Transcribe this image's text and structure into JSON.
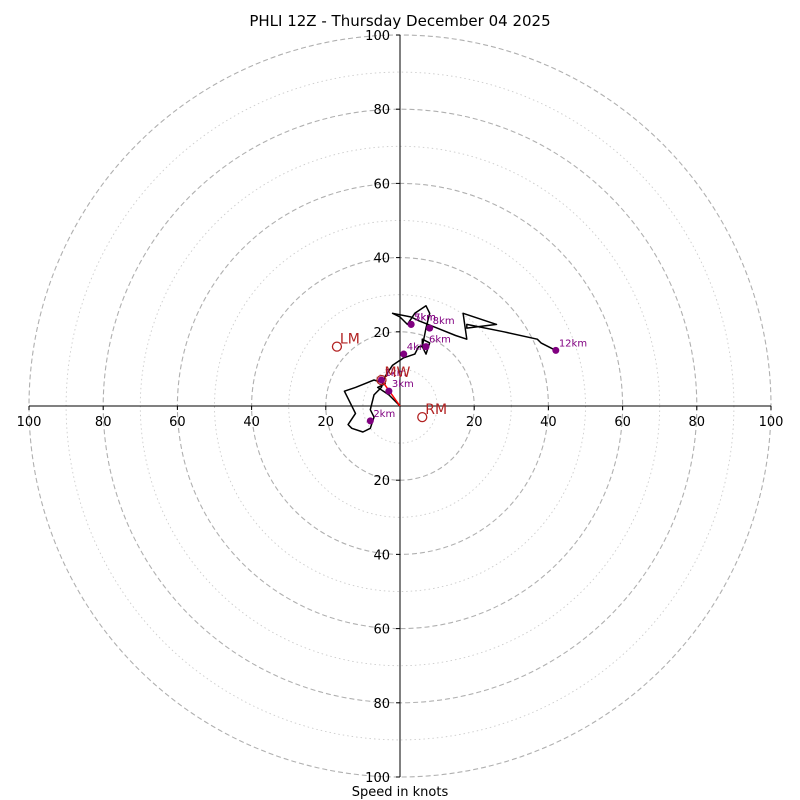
{
  "chart_data": {
    "type": "scatter",
    "title": "PHLI 12Z - Thursday December 04 2025",
    "xlabel": "Speed in knots",
    "ylabel": "",
    "range_knots": 100,
    "ring_step_major": 20,
    "ring_step_minor": 10,
    "grid": true,
    "tick_labels": [
      "100",
      "80",
      "60",
      "40",
      "20",
      "20",
      "40",
      "60",
      "80",
      "100"
    ],
    "x_ticks": [
      -100,
      -80,
      -60,
      -40,
      -20,
      20,
      40,
      60,
      80,
      100
    ],
    "y_ticks": [
      100,
      80,
      60,
      40,
      20,
      -20,
      -40,
      -60,
      -80,
      -100
    ],
    "hodograph_trace": [
      [
        0,
        0
      ],
      [
        -3,
        3
      ],
      [
        -6,
        5
      ],
      [
        -4,
        6
      ],
      [
        -7,
        7
      ],
      [
        -12,
        5
      ],
      [
        -15,
        4
      ],
      [
        -14,
        2
      ],
      [
        -12,
        -2
      ],
      [
        -14,
        -5
      ],
      [
        -13,
        -6
      ],
      [
        -10,
        -7
      ],
      [
        -8,
        -6
      ],
      [
        -7,
        -3
      ],
      [
        -8,
        -1
      ],
      [
        -7,
        3
      ],
      [
        -5,
        5
      ],
      [
        -4,
        8
      ],
      [
        -2,
        11
      ],
      [
        1,
        13
      ],
      [
        4,
        14
      ],
      [
        5,
        16
      ],
      [
        6,
        16
      ],
      [
        7,
        14
      ],
      [
        8,
        17
      ],
      [
        6,
        18
      ],
      [
        6,
        16
      ],
      [
        7,
        21
      ],
      [
        8,
        25
      ],
      [
        7,
        27
      ],
      [
        4,
        25
      ],
      [
        2,
        22
      ],
      [
        0,
        24
      ],
      [
        -2,
        25
      ],
      [
        3,
        24
      ],
      [
        5,
        23
      ],
      [
        10,
        21
      ],
      [
        15,
        19
      ],
      [
        18,
        18
      ],
      [
        17,
        25
      ],
      [
        26,
        22
      ],
      [
        18,
        21
      ],
      [
        18,
        22
      ],
      [
        28,
        20
      ],
      [
        37,
        18
      ],
      [
        38,
        17
      ],
      [
        42,
        15
      ]
    ],
    "height_markers": [
      {
        "label": "1km",
        "u": -5,
        "v": 7
      },
      {
        "label": "2km",
        "u": -8,
        "v": -4
      },
      {
        "label": "3km",
        "u": -3,
        "v": 4
      },
      {
        "label": "4km",
        "u": 1,
        "v": 14
      },
      {
        "label": "5km",
        "u": 3,
        "v": 22
      },
      {
        "label": "6km",
        "u": 7,
        "v": 16
      },
      {
        "label": "7km",
        "u": 3,
        "v": 22
      },
      {
        "label": "8km",
        "u": 8,
        "v": 21
      },
      {
        "label": "12km",
        "u": 42,
        "v": 15
      }
    ],
    "storm_motion": [
      {
        "label": "LM",
        "u": -17,
        "v": 16
      },
      {
        "label": "RM",
        "u": 6,
        "v": -3
      },
      {
        "label": "MW",
        "u": -5,
        "v": 7
      }
    ],
    "bulk_shear_vector": {
      "from": [
        0,
        0
      ],
      "to": [
        -5,
        7
      ]
    },
    "colors": {
      "trace": "#000000",
      "markers": "#800080",
      "storm_motion": "#b22222",
      "shear": "#ff0000",
      "grid": "#b0b0b0",
      "axes": "#000000"
    }
  }
}
